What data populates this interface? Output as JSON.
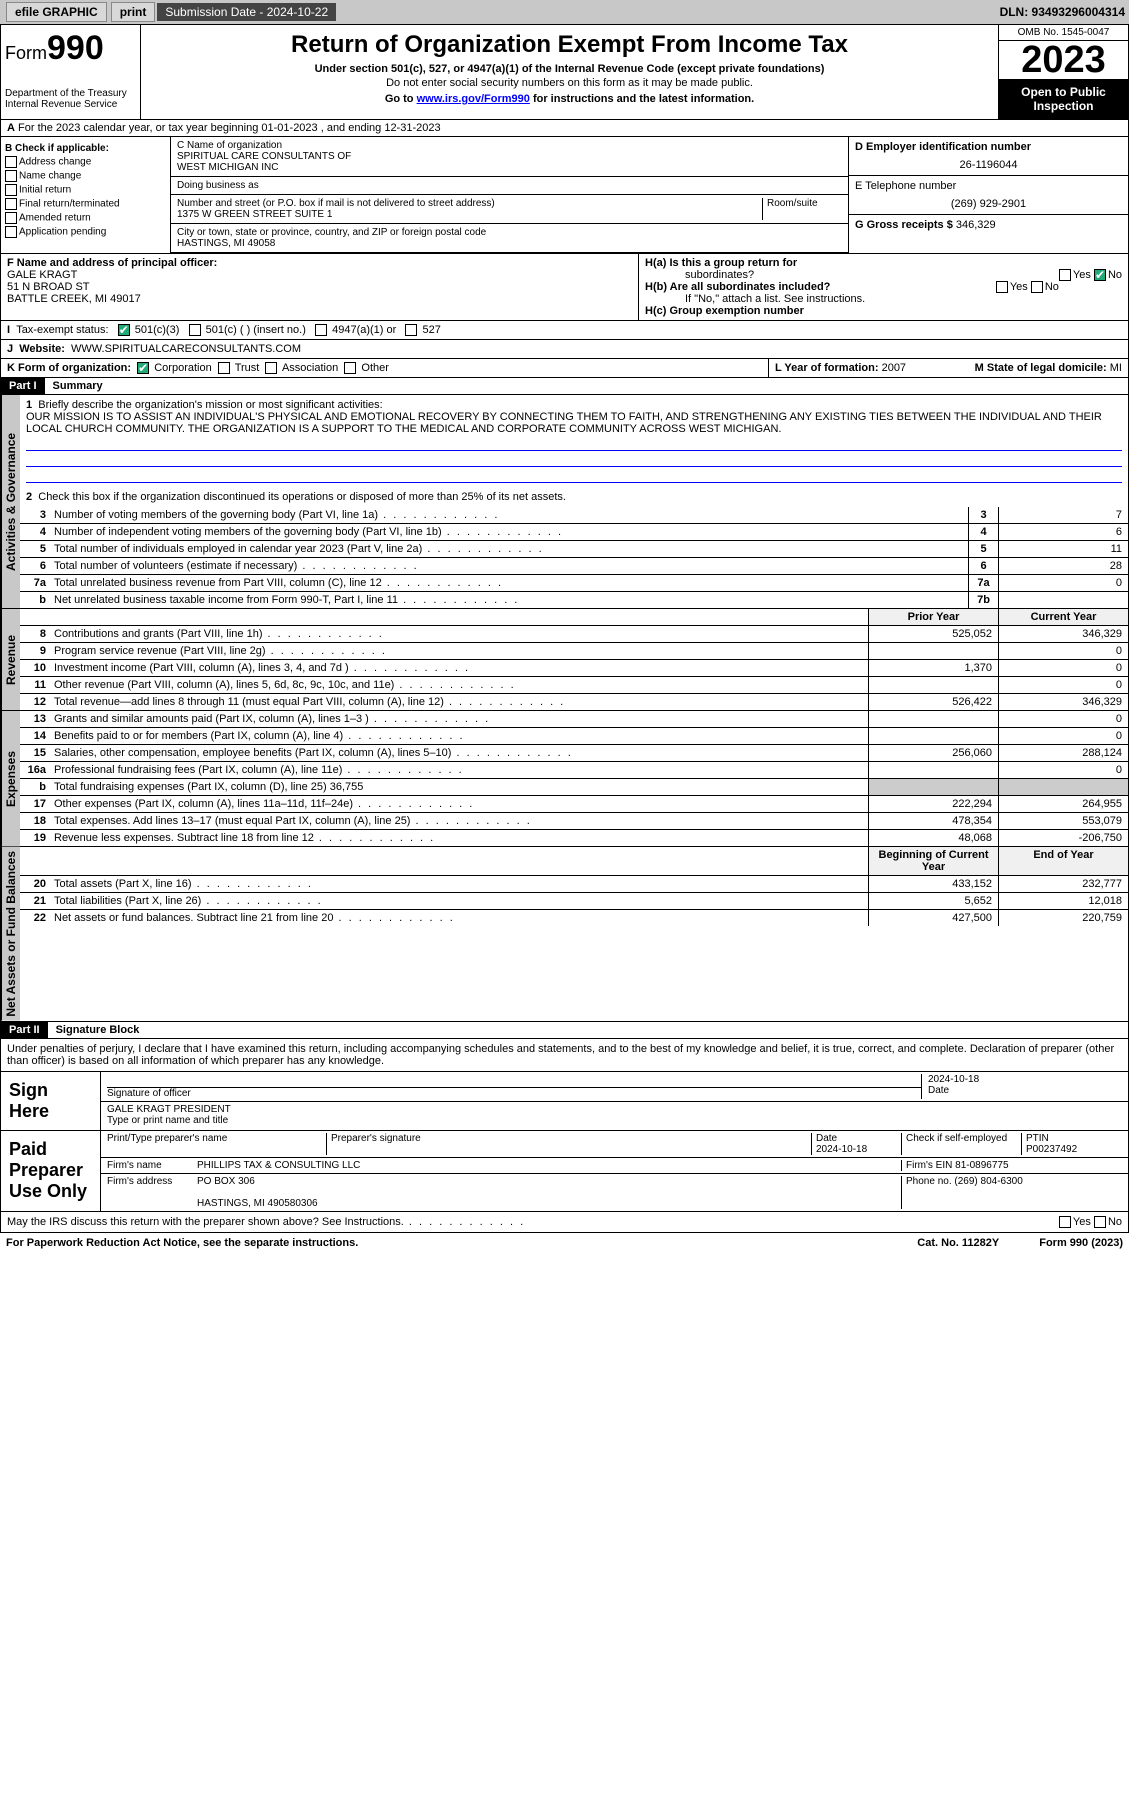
{
  "topbar": {
    "efile": "efile GRAPHIC",
    "print": "print",
    "subdate_label": "Submission Date - 2024-10-22",
    "dln": "DLN: 93493296004314"
  },
  "header": {
    "form_prefix": "Form",
    "form_number": "990",
    "title": "Return of Organization Exempt From Income Tax",
    "subtitle": "Under section 501(c), 527, or 4947(a)(1) of the Internal Revenue Code (except private foundations)",
    "ssn_note": "Do not enter social security numbers on this form as it may be made public.",
    "goto": "Go to ",
    "goto_link": "www.irs.gov/Form990",
    "goto_suffix": " for instructions and the latest information.",
    "dept": "Department of the Treasury\nInternal Revenue Service",
    "omb": "OMB No. 1545-0047",
    "year": "2023",
    "inspect": "Open to Public Inspection"
  },
  "line_a": "For the 2023 calendar year, or tax year beginning 01-01-2023    , and ending 12-31-2023",
  "block_b": {
    "checks": [
      "Address change",
      "Name change",
      "Initial return",
      "Final return/terminated",
      "Amended return",
      "Application pending"
    ],
    "b_label": "B Check if applicable:",
    "c_label": "C Name of organization",
    "org_name": "SPIRITUAL CARE CONSULTANTS OF\nWEST MICHIGAN INC",
    "dba": "Doing business as",
    "street_label": "Number and street (or P.O. box if mail is not delivered to street address)",
    "room_label": "Room/suite",
    "street": "1375 W GREEN STREET SUITE 1",
    "city_label": "City or town, state or province, country, and ZIP or foreign postal code",
    "city": "HASTINGS, MI  49058",
    "d_label": "D Employer identification number",
    "ein": "26-1196044",
    "e_label": "E Telephone number",
    "phone": "(269) 929-2901",
    "g_label": "G Gross receipts $",
    "gross": "346,329"
  },
  "fh": {
    "f_label": "F  Name and address of principal officer:",
    "f_name": "GALE KRAGT",
    "f_addr1": "51 N BROAD ST",
    "f_addr2": "BATTLE CREEK, MI  49017",
    "ha": "H(a)  Is this a group return for",
    "ha2": "subordinates?",
    "hb": "H(b)  Are all subordinates included?",
    "hb_note": "If \"No,\" attach a list. See instructions.",
    "hc": "H(c)  Group exemption number",
    "yes": "Yes",
    "no": "No",
    "i_label": "Tax-exempt status:",
    "i_501c3": "501(c)(3)",
    "i_501c": "501(c) (  ) (insert no.)",
    "i_4947": "4947(a)(1) or",
    "i_527": "527",
    "j_label": "Website:",
    "website": "WWW.SPIRITUALCARECONSULTANTS.COM",
    "k_label": "K Form of organization:",
    "k_corp": "Corporation",
    "k_trust": "Trust",
    "k_assoc": "Association",
    "k_other": "Other",
    "l_label": "L Year of formation:",
    "l_val": "2007",
    "m_label": "M State of legal domicile:",
    "m_val": "MI"
  },
  "part1": {
    "label": "Part I",
    "title": "Summary",
    "q1": "Briefly describe the organization's mission or most significant activities:",
    "mission": "OUR MISSION IS TO ASSIST AN INDIVIDUAL'S PHYSICAL AND EMOTIONAL RECOVERY BY CONNECTING THEM TO FAITH, AND STRENGTHENING ANY EXISTING TIES BETWEEN THE INDIVIDUAL AND THEIR LOCAL CHURCH COMMUNITY. THE ORGANIZATION IS A SUPPORT TO THE MEDICAL AND CORPORATE COMMUNITY ACROSS WEST MICHIGAN.",
    "q2": "Check this box       if the organization discontinued its operations or disposed of more than 25% of its net assets.",
    "governance": [
      {
        "n": "3",
        "t": "Number of voting members of the governing body (Part VI, line 1a)",
        "b": "3",
        "v": "7"
      },
      {
        "n": "4",
        "t": "Number of independent voting members of the governing body (Part VI, line 1b)",
        "b": "4",
        "v": "6"
      },
      {
        "n": "5",
        "t": "Total number of individuals employed in calendar year 2023 (Part V, line 2a)",
        "b": "5",
        "v": "11"
      },
      {
        "n": "6",
        "t": "Total number of volunteers (estimate if necessary)",
        "b": "6",
        "v": "28"
      },
      {
        "n": "7a",
        "t": "Total unrelated business revenue from Part VIII, column (C), line 12",
        "b": "7a",
        "v": "0"
      },
      {
        "n": "b",
        "t": "Net unrelated business taxable income from Form 990-T, Part I, line 11",
        "b": "7b",
        "v": ""
      }
    ],
    "hdr_prior": "Prior Year",
    "hdr_curr": "Current Year",
    "revenue": [
      {
        "n": "8",
        "t": "Contributions and grants (Part VIII, line 1h)",
        "p": "525,052",
        "c": "346,329"
      },
      {
        "n": "9",
        "t": "Program service revenue (Part VIII, line 2g)",
        "p": "",
        "c": "0"
      },
      {
        "n": "10",
        "t": "Investment income (Part VIII, column (A), lines 3, 4, and 7d )",
        "p": "1,370",
        "c": "0"
      },
      {
        "n": "11",
        "t": "Other revenue (Part VIII, column (A), lines 5, 6d, 8c, 9c, 10c, and 11e)",
        "p": "",
        "c": "0"
      },
      {
        "n": "12",
        "t": "Total revenue—add lines 8 through 11 (must equal Part VIII, column (A), line 12)",
        "p": "526,422",
        "c": "346,329"
      }
    ],
    "expenses": [
      {
        "n": "13",
        "t": "Grants and similar amounts paid (Part IX, column (A), lines 1–3 )",
        "p": "",
        "c": "0"
      },
      {
        "n": "14",
        "t": "Benefits paid to or for members (Part IX, column (A), line 4)",
        "p": "",
        "c": "0"
      },
      {
        "n": "15",
        "t": "Salaries, other compensation, employee benefits (Part IX, column (A), lines 5–10)",
        "p": "256,060",
        "c": "288,124"
      },
      {
        "n": "16a",
        "t": "Professional fundraising fees (Part IX, column (A), line 11e)",
        "p": "",
        "c": "0"
      },
      {
        "n": "b",
        "t": "Total fundraising expenses (Part IX, column (D), line 25) 36,755",
        "p": null,
        "c": null
      },
      {
        "n": "17",
        "t": "Other expenses (Part IX, column (A), lines 11a–11d, 11f–24e)",
        "p": "222,294",
        "c": "264,955"
      },
      {
        "n": "18",
        "t": "Total expenses. Add lines 13–17 (must equal Part IX, column (A), line 25)",
        "p": "478,354",
        "c": "553,079"
      },
      {
        "n": "19",
        "t": "Revenue less expenses. Subtract line 18 from line 12",
        "p": "48,068",
        "c": "-206,750"
      }
    ],
    "hdr_beg": "Beginning of Current Year",
    "hdr_end": "End of Year",
    "netassets": [
      {
        "n": "20",
        "t": "Total assets (Part X, line 16)",
        "p": "433,152",
        "c": "232,777"
      },
      {
        "n": "21",
        "t": "Total liabilities (Part X, line 26)",
        "p": "5,652",
        "c": "12,018"
      },
      {
        "n": "22",
        "t": "Net assets or fund balances. Subtract line 21 from line 20",
        "p": "427,500",
        "c": "220,759"
      }
    ]
  },
  "part2": {
    "label": "Part II",
    "title": "Signature Block",
    "penalty": "Under penalties of perjury, I declare that I have examined this return, including accompanying schedules and statements, and to the best of my knowledge and belief, it is true, correct, and complete. Declaration of preparer (other than officer) is based on all information of which preparer has any knowledge.",
    "sign_here": "Sign Here",
    "sig_officer": "Signature of officer",
    "officer_name": "GALE KRAGT PRESIDENT",
    "type_name": "Type or print name and title",
    "date": "Date",
    "date_val": "2024-10-18",
    "paid_prep": "Paid Preparer Use Only",
    "prep_name_label": "Print/Type preparer's name",
    "prep_sig_label": "Preparer's signature",
    "prep_date": "2024-10-18",
    "check_self": "Check         if self-employed",
    "ptin_label": "PTIN",
    "ptin": "P00237492",
    "firm_name_label": "Firm's name",
    "firm_name": "PHILLIPS TAX & CONSULTING LLC",
    "firm_ein_label": "Firm's EIN",
    "firm_ein": "81-0896775",
    "firm_addr_label": "Firm's address",
    "firm_addr": "PO BOX 306\n\nHASTINGS, MI  490580306",
    "firm_phone_label": "Phone no.",
    "firm_phone": "(269) 804-6300",
    "discuss": "May the IRS discuss this return with the preparer shown above? See Instructions."
  },
  "footer": {
    "paperwork": "For Paperwork Reduction Act Notice, see the separate instructions.",
    "cat": "Cat. No. 11282Y",
    "formno": "Form 990 (2023)"
  },
  "tabs": {
    "gov": "Activities & Governance",
    "rev": "Revenue",
    "exp": "Expenses",
    "net": "Net Assets or Fund Balances"
  }
}
